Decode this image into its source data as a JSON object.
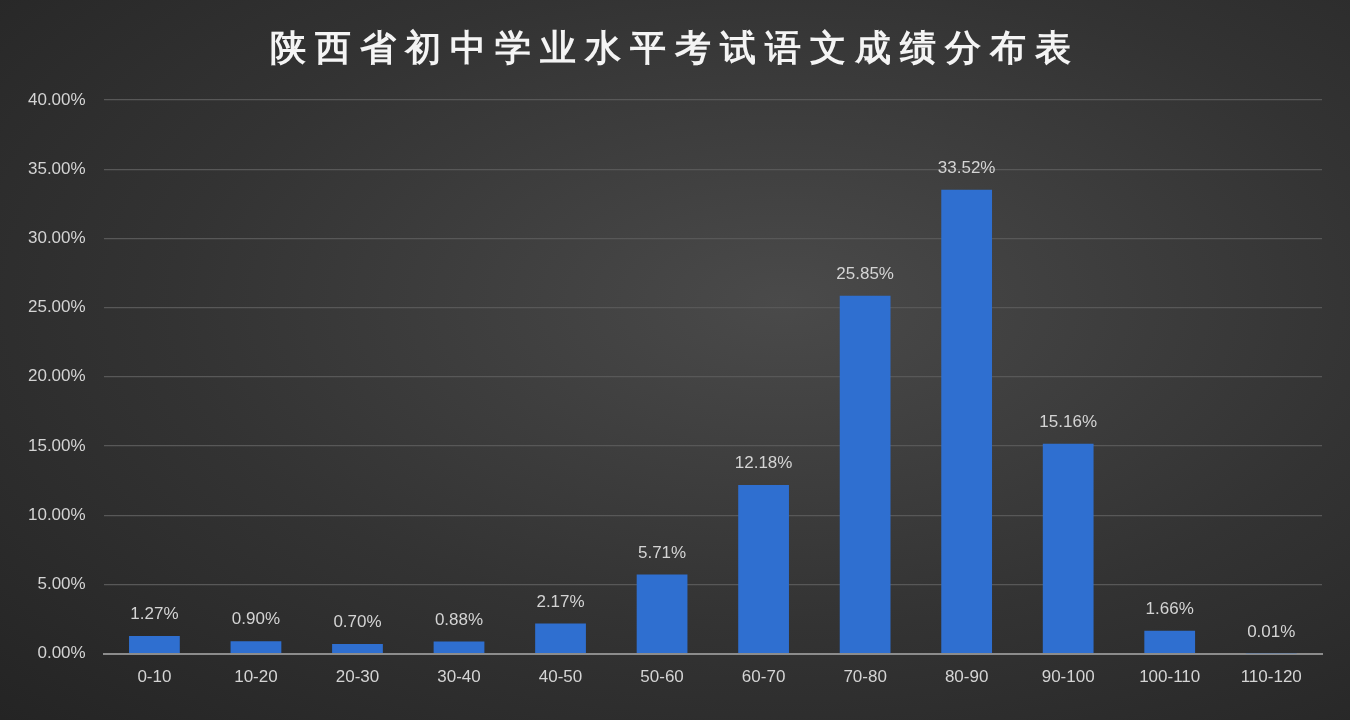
{
  "chart_data": {
    "type": "bar",
    "title": "陕西省初中学业水平考试语文成绩分布表",
    "categories": [
      "0-10",
      "10-20",
      "20-30",
      "30-40",
      "40-50",
      "50-60",
      "60-70",
      "70-80",
      "80-90",
      "90-100",
      "100-110",
      "110-120"
    ],
    "values": [
      1.27,
      0.9,
      0.7,
      0.88,
      2.17,
      5.71,
      12.18,
      25.85,
      33.52,
      15.16,
      1.66,
      0.01
    ],
    "value_labels": [
      "1.27%",
      "0.90%",
      "0.70%",
      "0.88%",
      "2.17%",
      "5.71%",
      "12.18%",
      "25.85%",
      "33.52%",
      "15.16%",
      "1.66%",
      "0.01%"
    ],
    "color": "#2f6fd0",
    "ylim": [
      0,
      40
    ],
    "yticks": [
      {
        "value": 0,
        "label": "0.00%"
      },
      {
        "value": 5,
        "label": "5.00%"
      },
      {
        "value": 10,
        "label": "10.00%"
      },
      {
        "value": 15,
        "label": "15.00%"
      },
      {
        "value": 20,
        "label": "20.00%"
      },
      {
        "value": 25,
        "label": "25.00%"
      },
      {
        "value": 30,
        "label": "30.00%"
      },
      {
        "value": 35,
        "label": "35.00%"
      },
      {
        "value": 40,
        "label": "40.00%"
      }
    ],
    "grid": "y"
  }
}
